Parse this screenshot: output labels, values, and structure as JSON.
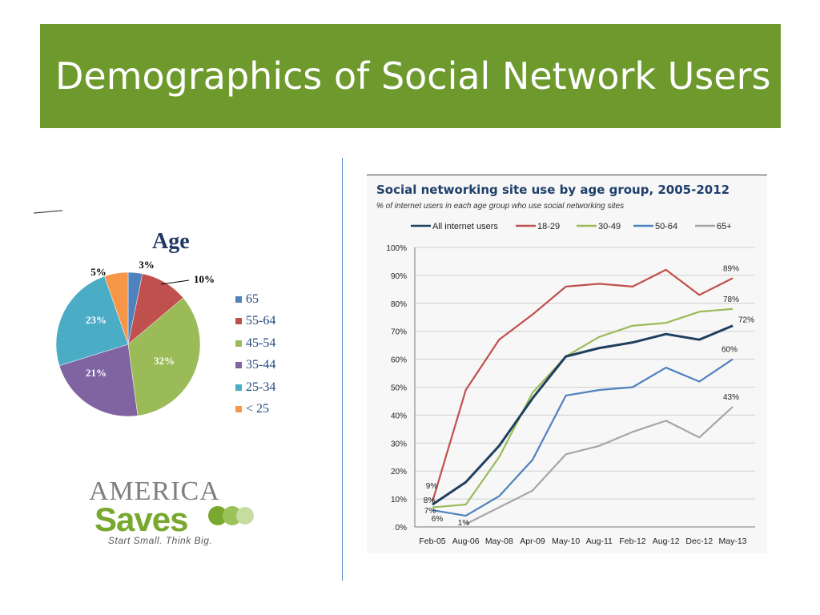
{
  "slide": {
    "title": "Demographics of Social Network Users"
  },
  "pie_chart": {
    "title": "Age"
  },
  "logo": {
    "top": "AMERICA",
    "main": "Saves",
    "tagline": "Start Small. Think Big."
  },
  "line_chart": {
    "title": "Social networking site use by age group, 2005-2012",
    "subtitle": "% of internet users in each age group who use social networking sites"
  },
  "colors": {
    "banner": "#6e9a2d",
    "divider": "#4f81bd"
  },
  "chart_data": [
    {
      "type": "pie",
      "title": "Age",
      "categories": [
        "65",
        "55-64",
        "45-54",
        "35-44",
        "25-34",
        "< 25"
      ],
      "values": [
        3,
        10,
        32,
        21,
        23,
        5
      ],
      "labels": [
        "3%",
        "10%",
        "32%",
        "21%",
        "23%",
        "5%"
      ],
      "colors": [
        "#4f81bd",
        "#c0504d",
        "#9bbb59",
        "#8064a2",
        "#4bacc6",
        "#f79646"
      ],
      "legend": "right"
    },
    {
      "type": "line",
      "title": "Social networking site use by age group, 2005-2012",
      "subtitle": "% of internet users in each age group who use social networking sites",
      "x": [
        "Feb-05",
        "Aug-06",
        "May-08",
        "Apr-09",
        "May-10",
        "Aug-11",
        "Feb-12",
        "Aug-12",
        "Dec-12",
        "May-13"
      ],
      "ylim": [
        0,
        100
      ],
      "yticks": [
        "0%",
        "10%",
        "20%",
        "30%",
        "40%",
        "50%",
        "60%",
        "70%",
        "80%",
        "90%",
        "100%"
      ],
      "grid": true,
      "legend": "top",
      "series": [
        {
          "name": "All internet users",
          "color": "#1f3f5f",
          "values": [
            8,
            16,
            29,
            46,
            61,
            64,
            66,
            69,
            67,
            72
          ]
        },
        {
          "name": "18-29",
          "color": "#c0504d",
          "values": [
            9,
            49,
            67,
            76,
            86,
            87,
            86,
            92,
            83,
            89
          ]
        },
        {
          "name": "30-49",
          "color": "#9bbb59",
          "values": [
            7,
            8,
            25,
            48,
            61,
            68,
            72,
            73,
            77,
            78
          ]
        },
        {
          "name": "50-64",
          "color": "#4f81bd",
          "values": [
            6,
            4,
            11,
            24,
            47,
            49,
            50,
            57,
            52,
            60
          ]
        },
        {
          "name": "65+",
          "color": "#a6a6a6",
          "values": [
            null,
            1,
            7,
            13,
            26,
            29,
            34,
            38,
            32,
            43
          ]
        }
      ],
      "end_labels": [
        "72%",
        "89%",
        "78%",
        "60%",
        "43%"
      ],
      "start_labels": [
        "8%",
        "9%",
        "7%",
        "6%",
        "1%"
      ]
    }
  ]
}
